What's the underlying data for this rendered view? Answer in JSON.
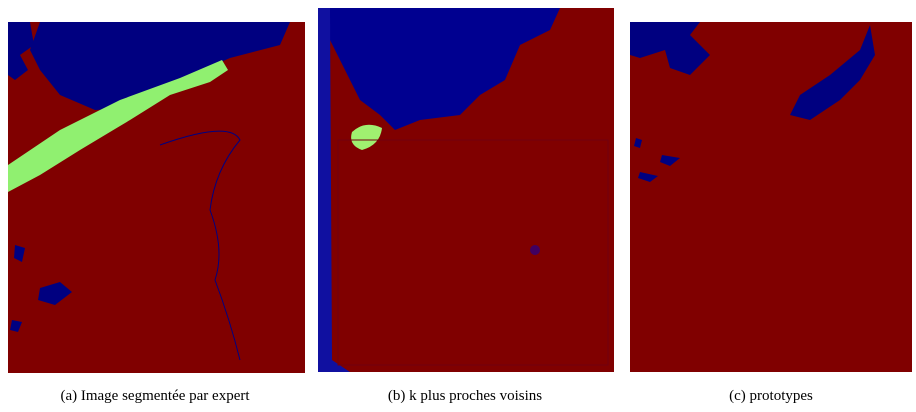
{
  "captions": [
    "(a)  Image segmentée par expert",
    "(b)  k plus proches voisins",
    "(c)  prototypes"
  ]
}
